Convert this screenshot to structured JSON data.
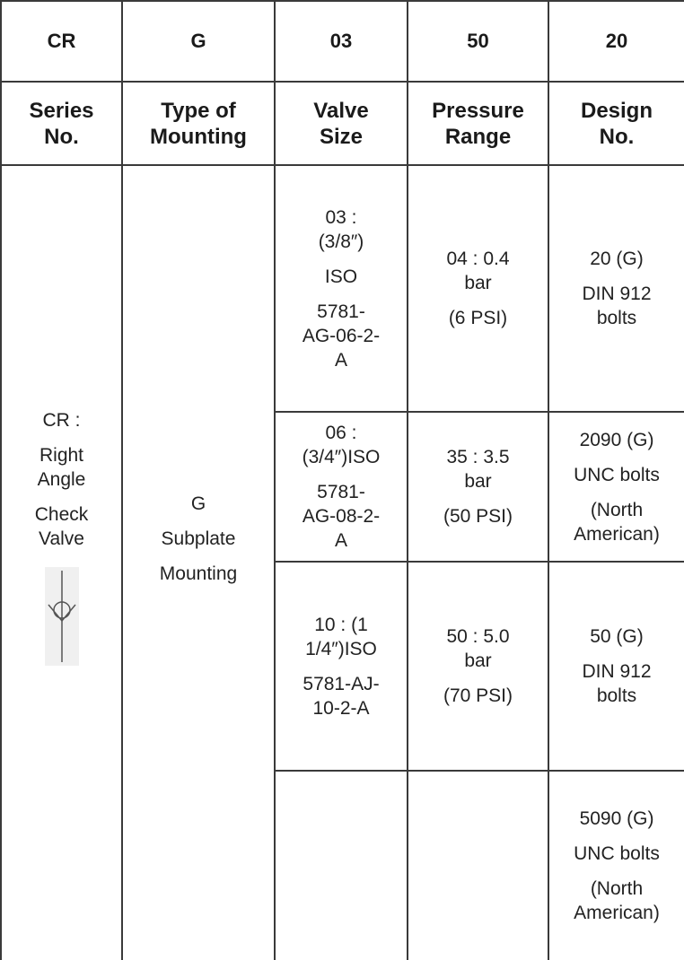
{
  "codes": [
    "CR",
    "G",
    "03",
    "50",
    "20"
  ],
  "headers": [
    [
      "Series",
      "No."
    ],
    [
      "Type of",
      "Mounting"
    ],
    [
      "Valve",
      "Size"
    ],
    [
      "Pressure",
      "Range"
    ],
    [
      "Design",
      "No."
    ]
  ],
  "series": {
    "lines": [
      "CR :",
      "Right",
      "Angle",
      "Check",
      "Valve"
    ],
    "symbol_icon": "check-valve-symbol"
  },
  "mounting": {
    "lines": [
      "G",
      "Subplate",
      "Mounting"
    ]
  },
  "valve_sizes": [
    {
      "lines": [
        "03 :",
        "(3/8″)",
        "ISO",
        "5781-",
        "AG-06-2-",
        "A"
      ]
    },
    {
      "lines": [
        "06 :",
        "(3/4″)ISO",
        "5781-",
        "AG-08-2-",
        "A"
      ]
    },
    {
      "lines": [
        "10 : (1",
        "1/4″)ISO",
        "5781-AJ-",
        "10-2-A"
      ]
    }
  ],
  "pressure_ranges": [
    {
      "lines": [
        "04 : 0.4",
        "bar",
        "(6 PSI)"
      ]
    },
    {
      "lines": [
        "35 : 3.5",
        "bar",
        "(50 PSI)"
      ]
    },
    {
      "lines": [
        "50 : 5.0",
        "bar",
        "(70 PSI)"
      ]
    }
  ],
  "designs": [
    {
      "lines": [
        "20 (G)",
        "DIN 912",
        "bolts"
      ]
    },
    {
      "lines": [
        "2090 (G)",
        "UNC bolts",
        "(North",
        "American)"
      ]
    },
    {
      "lines": [
        "50 (G)",
        "DIN 912",
        "bolts"
      ]
    },
    {
      "lines": [
        "5090 (G)",
        "UNC bolts",
        "(North",
        "American)"
      ]
    }
  ]
}
